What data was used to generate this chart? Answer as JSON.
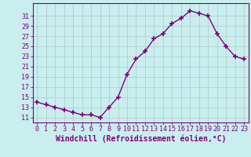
{
  "x": [
    0,
    1,
    2,
    3,
    4,
    5,
    6,
    7,
    8,
    9,
    10,
    11,
    12,
    13,
    14,
    15,
    16,
    17,
    18,
    19,
    20,
    21,
    22,
    23
  ],
  "y": [
    14.0,
    13.5,
    13.0,
    12.5,
    12.0,
    11.5,
    11.5,
    11.0,
    13.0,
    15.0,
    19.5,
    22.5,
    24.0,
    26.5,
    27.5,
    29.5,
    30.5,
    32.0,
    31.5,
    31.0,
    27.5,
    25.0,
    23.0,
    22.5
  ],
  "line_color": "#800080",
  "marker": "+",
  "marker_size": 4,
  "marker_lw": 1.2,
  "bg_color": "#c8eeee",
  "grid_color": "#b0c8c8",
  "xlabel": "Windchill (Refroidissement éolien,°C)",
  "xlabel_color": "#800080",
  "xlabel_fontsize": 7,
  "ytick_labels": [
    "11",
    "13",
    "15",
    "17",
    "19",
    "21",
    "23",
    "25",
    "27",
    "29",
    "31"
  ],
  "ytick_values": [
    11,
    13,
    15,
    17,
    19,
    21,
    23,
    25,
    27,
    29,
    31
  ],
  "ylim": [
    10.0,
    33.5
  ],
  "xlim": [
    -0.5,
    23.5
  ],
  "tick_fontsize": 6,
  "tick_color": "#800080",
  "spine_color": "#800080",
  "linewidth": 1.0
}
